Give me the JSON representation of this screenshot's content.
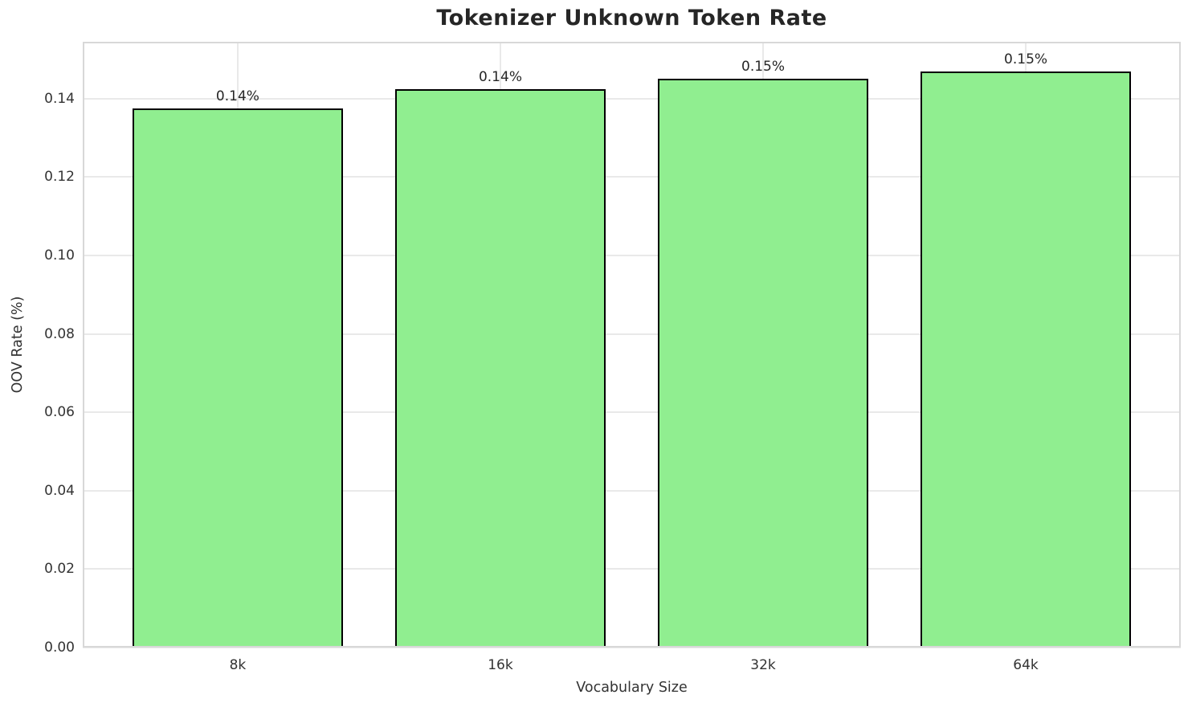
{
  "chart_data": {
    "type": "bar",
    "title": "Tokenizer Unknown Token Rate",
    "xlabel": "Vocabulary Size",
    "ylabel": "OOV Rate (%)",
    "categories": [
      "8k",
      "16k",
      "32k",
      "64k"
    ],
    "values": [
      0.1375,
      0.1425,
      0.145,
      0.147
    ],
    "bar_labels": [
      "0.14%",
      "0.14%",
      "0.15%",
      "0.15%"
    ],
    "yticks": [
      0.0,
      0.02,
      0.04,
      0.06,
      0.08,
      0.1,
      0.12,
      0.14
    ],
    "ytick_labels": [
      "0.00",
      "0.02",
      "0.04",
      "0.06",
      "0.08",
      "0.10",
      "0.12",
      "0.14"
    ],
    "ylim": [
      0,
      0.1545
    ],
    "xlim": [
      -0.59,
      3.59
    ],
    "bar_width": 0.8,
    "grid": true,
    "legend": "none",
    "bar_color": "#90EE90",
    "bar_edge_color": "#000000",
    "grid_color": "#e9e9e9",
    "spine_color": "#d8d8d8",
    "background_color": "#ffffff"
  }
}
